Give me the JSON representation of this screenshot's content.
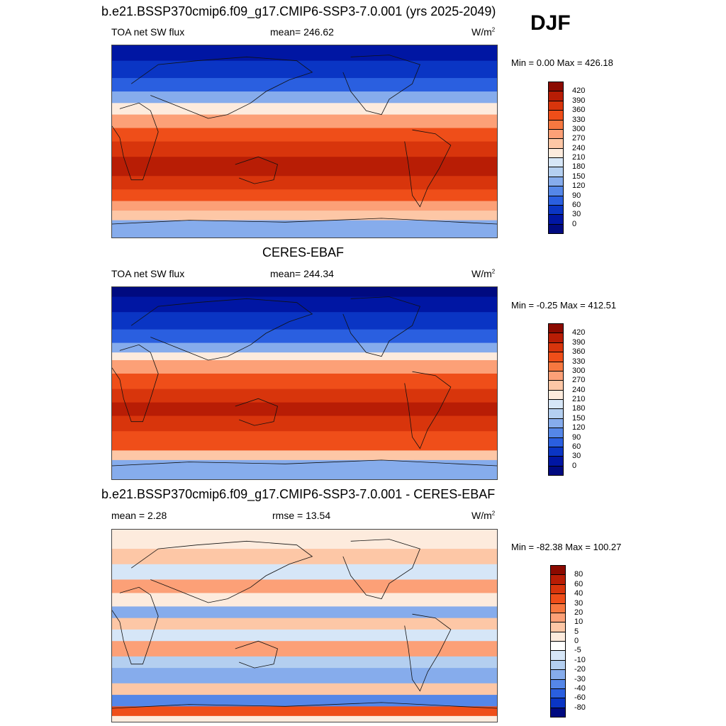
{
  "season": "DJF",
  "colors": {
    "ocean_trop_high": "#b0250d",
    "continent_line": "#111111"
  },
  "chart_data": [
    {
      "type": "heatmap",
      "title": "b.e21.BSSP370cmip6.f09_g17.CMIP6-SSP3-7.0.001 (yrs 2025-2049)",
      "variable": "TOA net SW flux",
      "stat_label": "mean= 246.62",
      "units": "W/m",
      "units_sup": "2",
      "minmax": "Min =   0.00 Max = 426.18",
      "levels": [
        "420",
        "390",
        "360",
        "330",
        "300",
        "270",
        "240",
        "210",
        "180",
        "150",
        "120",
        "90",
        "60",
        "30",
        "0"
      ],
      "level_colors": [
        "#8b0a00",
        "#b81d05",
        "#d8350c",
        "#ef4e19",
        "#f77840",
        "#fca077",
        "#fdc7a6",
        "#fdebdd",
        "#d6e6f7",
        "#b4cff0",
        "#86acec",
        "#5587e8",
        "#2a5fe0",
        "#0a35c4",
        "#0016a3",
        "#000a80"
      ],
      "mean": 246.62,
      "min": 0.0,
      "max": 426.18
    },
    {
      "type": "heatmap",
      "title": "CERES-EBAF",
      "variable": "TOA net SW flux",
      "stat_label": "mean= 244.34",
      "units": "W/m",
      "units_sup": "2",
      "minmax": "Min =  -0.25 Max = 412.51",
      "levels": [
        "420",
        "390",
        "360",
        "330",
        "300",
        "270",
        "240",
        "210",
        "180",
        "150",
        "120",
        "90",
        "60",
        "30",
        "0"
      ],
      "level_colors": [
        "#8b0a00",
        "#b81d05",
        "#d8350c",
        "#ef4e19",
        "#f77840",
        "#fca077",
        "#fdc7a6",
        "#fdebdd",
        "#d6e6f7",
        "#b4cff0",
        "#86acec",
        "#5587e8",
        "#2a5fe0",
        "#0a35c4",
        "#0016a3",
        "#000a80"
      ],
      "mean": 244.34,
      "min": -0.25,
      "max": 412.51
    },
    {
      "type": "heatmap",
      "title": "b.e21.BSSP370cmip6.f09_g17.CMIP6-SSP3-7.0.001 - CERES-EBAF",
      "stat_label": "mean =   2.28",
      "stat_label2": "rmse =  13.54",
      "units": "W/m",
      "units_sup": "2",
      "minmax": "Min = -82.38 Max = 100.27",
      "levels": [
        "80",
        "60",
        "40",
        "30",
        "20",
        "10",
        "5",
        "0",
        "-5",
        "-10",
        "-20",
        "-30",
        "-40",
        "-60",
        "-80"
      ],
      "level_colors": [
        "#8b0a00",
        "#b81d05",
        "#d8350c",
        "#ef4e19",
        "#f77840",
        "#fca077",
        "#fdc7a6",
        "#fdebdd",
        "#ffffff",
        "#d6e6f7",
        "#b4cff0",
        "#86acec",
        "#5587e8",
        "#2a5fe0",
        "#0a35c4",
        "#000a80"
      ],
      "mean": 2.28,
      "rmse": 13.54,
      "min": -82.38,
      "max": 100.27
    }
  ]
}
